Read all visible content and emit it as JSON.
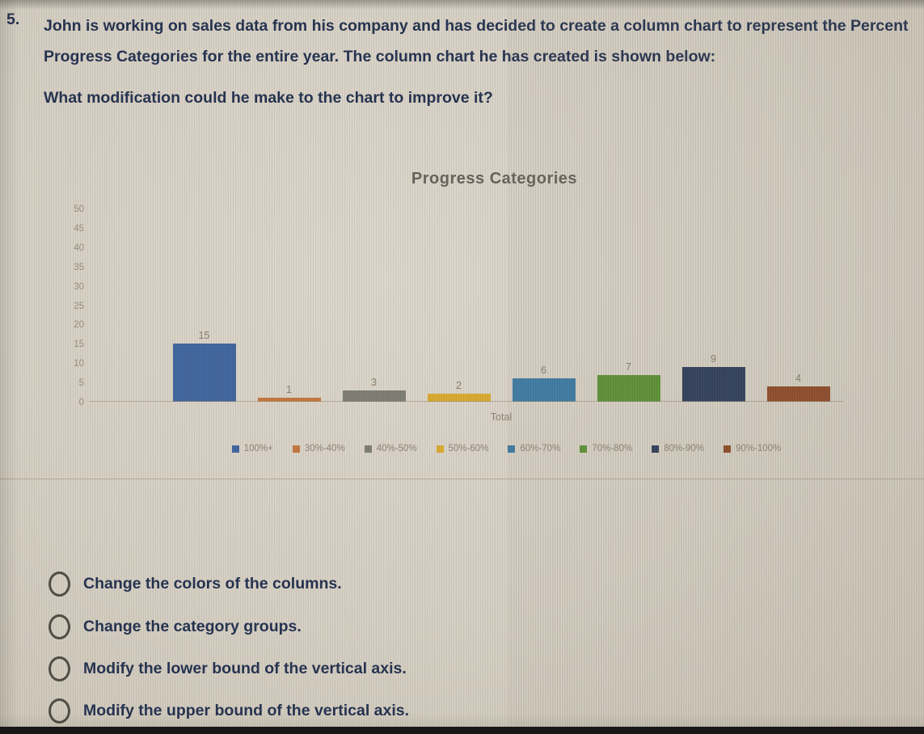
{
  "question": {
    "number": "5.",
    "text": "John is working on sales data from his company and has decided to create a column chart to represent the Percent Progress Categories for the entire year. The column chart he has created is shown below:",
    "prompt": "What modification could he make to the chart to improve it?"
  },
  "chart_data": {
    "type": "bar",
    "title": "Progress Categories",
    "x_category": "Total",
    "xlabel": "Total",
    "ylabel": "",
    "ylim": [
      0,
      50
    ],
    "ytick_interval": 5,
    "yticks": [
      50,
      45,
      40,
      35,
      30,
      25,
      20,
      15,
      10,
      5,
      0
    ],
    "grid": false,
    "legend_position": "bottom",
    "series": [
      {
        "name": "100%+",
        "value": 15,
        "color": "#3f649e"
      },
      {
        "name": "30%-40%",
        "value": 1,
        "color": "#c5763f"
      },
      {
        "name": "40%-50%",
        "value": 3,
        "color": "#7d7d74"
      },
      {
        "name": "50%-60%",
        "value": 2,
        "color": "#d9a930"
      },
      {
        "name": "60%-70%",
        "value": 6,
        "color": "#3a7aa5"
      },
      {
        "name": "70%-80%",
        "value": 7,
        "color": "#5c9134"
      },
      {
        "name": "80%-90%",
        "value": 9,
        "color": "#2d3d59"
      },
      {
        "name": "90%-100%",
        "value": 4,
        "color": "#8e4a28"
      }
    ]
  },
  "options": [
    {
      "label": "Change the colors of the columns."
    },
    {
      "label": "Change the category groups."
    },
    {
      "label": "Modify the lower bound of the vertical axis."
    },
    {
      "label": "Modify the upper bound of the vertical axis."
    }
  ]
}
